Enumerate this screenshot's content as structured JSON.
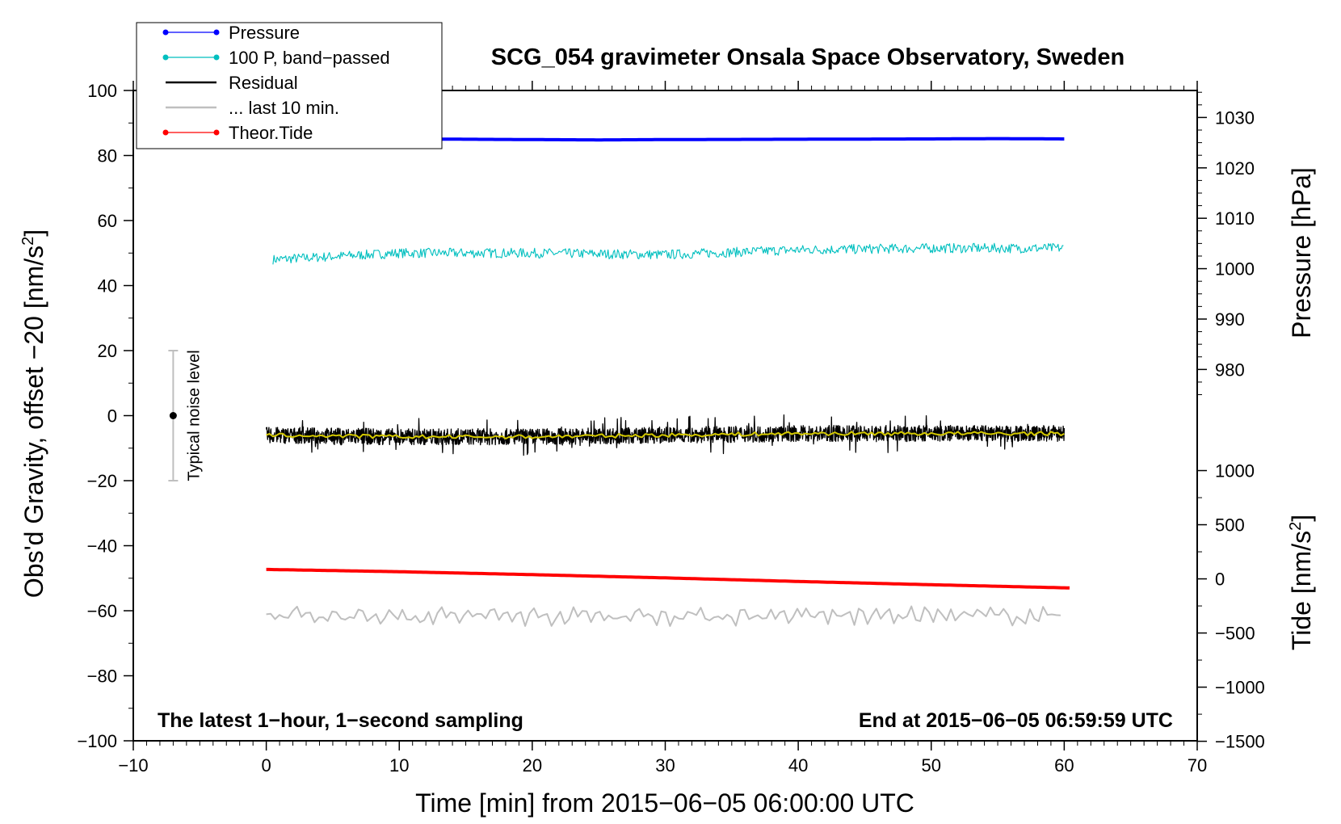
{
  "chart_data": {
    "type": "line",
    "title": "SCG_054 gravimeter Onsala Space Observatory, Sweden",
    "xlabel": "Time [min] from 2015−06−05 06:00:00 UTC",
    "ylabel_main": "Obs'd Gravity, offset −20 [nm/s",
    "ylabel_main_sup": "2",
    "ylabel_main_tail": "]",
    "ylabel_pressure": "Pressure [hPa]",
    "ylabel_tide": "Tide [nm/s",
    "ylabel_tide_sup": "2",
    "ylabel_tide_tail": "]",
    "xlim": [
      -10,
      70
    ],
    "ylim": [
      -100,
      100
    ],
    "x_ticks": [
      -10,
      0,
      10,
      20,
      30,
      40,
      50,
      60,
      70
    ],
    "x_tick_labels": [
      "−10",
      "0",
      "10",
      "20",
      "30",
      "40",
      "50",
      "60",
      "70"
    ],
    "y_ticks": [
      -100,
      -80,
      -60,
      -40,
      -20,
      0,
      20,
      40,
      60,
      80,
      100
    ],
    "y_tick_labels": [
      "−100",
      "−80",
      "−60",
      "−40",
      "−20",
      "0",
      "20",
      "40",
      "60",
      "80",
      "100"
    ],
    "pressure_axis": {
      "ticks": [
        980,
        990,
        1000,
        1010,
        1020,
        1030
      ],
      "labels": [
        "980",
        "990",
        "1000",
        "1010",
        "1020",
        "1030"
      ],
      "mapping": {
        "at_value": 1000,
        "main_y": 45.2,
        "main_units_per_hpa": 1.55
      }
    },
    "tide_axis": {
      "ticks": [
        -1500,
        -1000,
        -500,
        0,
        500,
        1000
      ],
      "labels": [
        "−1500",
        "−1000",
        "−500",
        "0",
        "500",
        "1000"
      ],
      "mapping": {
        "at_value": 0,
        "main_y": -50.2,
        "main_units_per_value": 0.0333
      }
    },
    "series": [
      {
        "name": "Pressure",
        "color": "#0000ff",
        "x": [
          0,
          10,
          20,
          25,
          30,
          40,
          50,
          55,
          60
        ],
        "y": [
          85.2,
          85.1,
          84.9,
          84.8,
          84.9,
          85.0,
          85.1,
          85.2,
          85.1
        ]
      },
      {
        "name": "100 P, band−passed",
        "color": "#00bfbf",
        "x": [
          0.5,
          10,
          20,
          30,
          40,
          50,
          60
        ],
        "y": [
          48.0,
          50.0,
          50.0,
          49.5,
          51.0,
          51.5,
          51.5
        ],
        "amplitude": 1.5
      },
      {
        "name": "Residual",
        "color": "#000000",
        "x": [
          0,
          10,
          20,
          30,
          40,
          50,
          60
        ],
        "y": [
          -6.0,
          -6.5,
          -6.5,
          -6.0,
          -5.5,
          -5.5,
          -5.5
        ],
        "amplitude": 2.5
      },
      {
        "name": "... last 10 min.",
        "color": "#bfbfbf",
        "x": [
          0,
          10,
          20,
          30,
          40,
          50,
          60
        ],
        "y": [
          -61.5,
          -61.5,
          -61.5,
          -61.5,
          -61.5,
          -61.5,
          -61.5
        ],
        "amplitude": 3.0
      },
      {
        "name": "Theor.Tide",
        "color": "#ff0000",
        "x": [
          0,
          10,
          20,
          30,
          40,
          50,
          60.5
        ],
        "y": [
          -47.3,
          -48.0,
          -48.9,
          -49.9,
          -51.0,
          -52.0,
          -53.0
        ]
      },
      {
        "color": "#d4c900",
        "x": [
          0,
          10,
          20,
          30,
          40,
          50,
          60
        ],
        "y": [
          -6.0,
          -6.5,
          -6.5,
          -6.0,
          -5.5,
          -5.5,
          -5.5
        ]
      }
    ],
    "legend": {
      "placement": "top-left",
      "entries": [
        {
          "label": "Pressure",
          "color": "#0000ff",
          "marker": true
        },
        {
          "label": "100 P, band−passed",
          "color": "#00bfbf",
          "marker": true
        },
        {
          "label": "Residual",
          "color": "#000000",
          "marker": false
        },
        {
          "label": "... last 10 min.",
          "color": "#bfbfbf",
          "marker": false
        },
        {
          "label": "Theor.Tide",
          "color": "#ff0000",
          "marker": true
        }
      ]
    },
    "noise_bar": {
      "label": "Typical noise level",
      "x": -7,
      "y_low": -20,
      "y_high": 20,
      "y_mid": 0
    },
    "annotation_left": "The latest 1−hour, 1−second sampling",
    "annotation_right": "End at 2015−06−05 06:59:59 UTC",
    "grid": false
  }
}
